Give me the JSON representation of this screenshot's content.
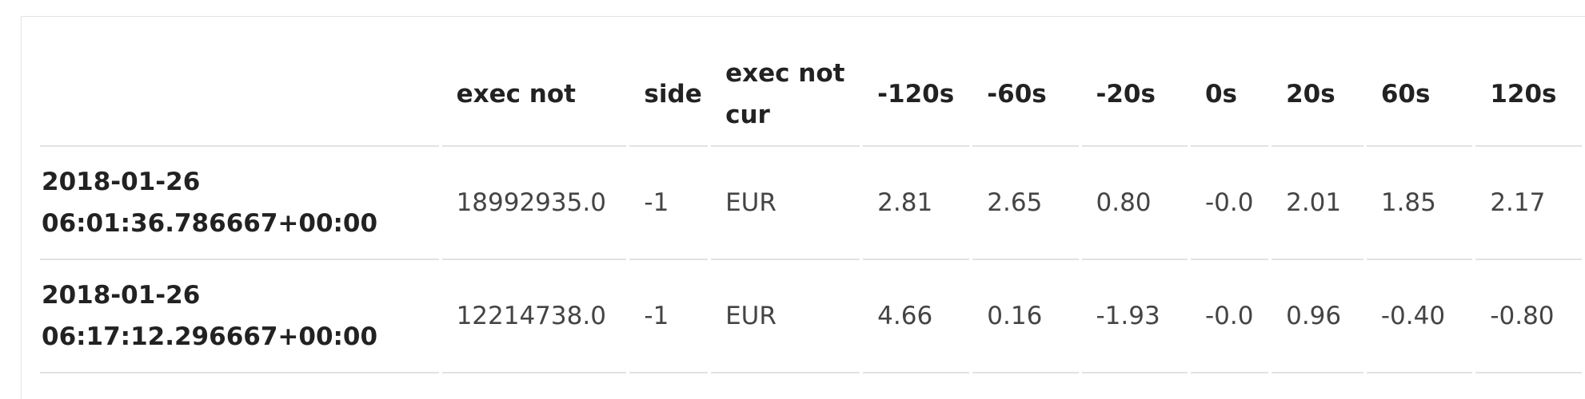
{
  "table": {
    "columns": [
      "",
      "exec not",
      "side",
      "exec not cur",
      "-120s",
      "-60s",
      "-20s",
      "0s",
      "20s",
      "60s",
      "120s"
    ],
    "rows": [
      {
        "index": "2018-01-26 06:01:36.786667+00:00",
        "cells": [
          "18992935.0",
          "-1",
          "EUR",
          "2.81",
          "2.65",
          "0.80",
          "-0.0",
          "2.01",
          "1.85",
          "2.17"
        ]
      },
      {
        "index": "2018-01-26 06:17:12.296667+00:00",
        "cells": [
          "12214738.0",
          "-1",
          "EUR",
          "4.66",
          "0.16",
          "-1.93",
          "-0.0",
          "0.96",
          "-0.40",
          "-0.80"
        ]
      }
    ]
  }
}
